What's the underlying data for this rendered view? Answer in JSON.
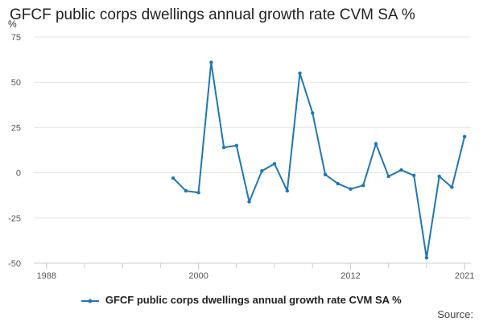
{
  "title": "GFCF public corps dwellings annual growth rate CVM SA %",
  "source_label": "Source:",
  "colors": {
    "series": "#1f77b4",
    "grid": "#e6e6e6",
    "axis": "#cccccc"
  },
  "chart_data": {
    "type": "line",
    "title": "GFCF public corps dwellings annual growth rate CVM SA %",
    "ylabel": "%",
    "xlabel": "",
    "ylim": [
      -50,
      75
    ],
    "xlim": [
      1987,
      2021.5
    ],
    "yticks": [
      75,
      50,
      25,
      0,
      -25,
      -50
    ],
    "xticks": [
      1988,
      2000,
      2012,
      2021
    ],
    "grid": true,
    "legend": "bottom-center",
    "series": [
      {
        "name": "GFCF public corps dwellings annual growth rate CVM SA %",
        "x": [
          1998,
          1999,
          2000,
          2001,
          2002,
          2003,
          2004,
          2005,
          2006,
          2007,
          2008,
          2009,
          2010,
          2011,
          2012,
          2013,
          2014,
          2015,
          2016,
          2017,
          2018,
          2019,
          2020,
          2021
        ],
        "values": [
          -3,
          -10,
          -11,
          61,
          14,
          15,
          -16,
          1,
          5,
          -10,
          55,
          33,
          -1,
          -6,
          -9,
          -7,
          16,
          -2,
          1.5,
          -1.5,
          -47,
          -2,
          -8,
          20
        ]
      }
    ]
  }
}
